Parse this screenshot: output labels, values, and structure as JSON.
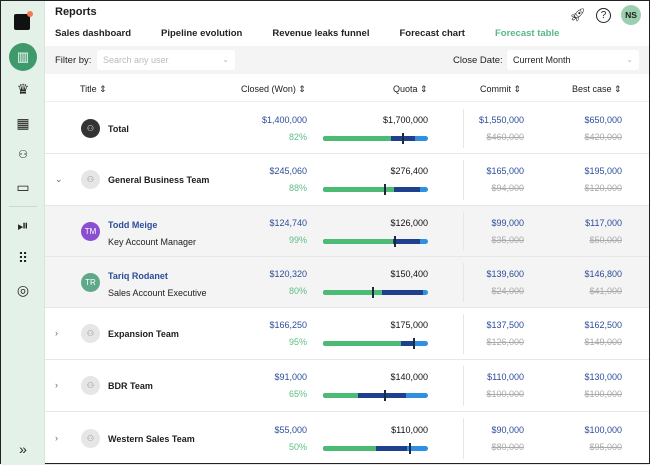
{
  "app": {
    "title": "Reports",
    "user_initials": "NS",
    "colors": {
      "accent": "#58b888",
      "closed": "#4cbb74",
      "commit": "#1f3f8f",
      "best": "#2f8fe0"
    }
  },
  "sidebar": {
    "items": [
      {
        "icon": "logo-icon"
      },
      {
        "icon": "bar-chart-icon",
        "active": true
      },
      {
        "icon": "crown-icon"
      },
      {
        "icon": "building-icon"
      },
      {
        "icon": "users-icon"
      },
      {
        "icon": "video-icon"
      },
      {
        "icon": "play-circle-icon"
      },
      {
        "icon": "apps-grid-icon"
      },
      {
        "icon": "user-circle-icon"
      },
      {
        "icon": "expand-icon"
      }
    ],
    "expand_glyph": "»"
  },
  "tabs": [
    {
      "label": "Sales dashboard"
    },
    {
      "label": "Pipeline evolution"
    },
    {
      "label": "Revenue leaks funnel"
    },
    {
      "label": "Forecast chart"
    },
    {
      "label": "Forecast table",
      "active": true
    }
  ],
  "filters": {
    "filter_label": "Filter by:",
    "search_placeholder": "Search any user",
    "close_date_label": "Close Date:",
    "close_date_value": "Current Month"
  },
  "columns": {
    "title": "Title",
    "closed": "Closed (Won)",
    "quota": "Quota",
    "commit": "Commit",
    "best": "Best case",
    "sort_glyph": "⌃"
  },
  "rows": [
    {
      "name": "Total",
      "type": "total",
      "closed": "$1,400,000",
      "pct": "82%",
      "quota": "$1,700,000",
      "commit": "$1,550,000",
      "commit_prev": "$460,000",
      "best": "$650,000",
      "best_prev": "$420,000",
      "bar": {
        "closed": 0.65,
        "commit": 0.88,
        "marker": 0.75
      }
    },
    {
      "name": "General Business Team",
      "type": "team",
      "expanded": true,
      "closed": "$245,060",
      "pct": "88%",
      "quota": "$276,400",
      "commit": "$165,000",
      "commit_prev": "$94,000",
      "best": "$195,000",
      "best_prev": "$120,000",
      "bar": {
        "closed": 0.68,
        "commit": 0.92,
        "marker": 0.58
      }
    },
    {
      "name": "Todd Meige",
      "role": "Key Account Manager",
      "type": "user",
      "initials": "TM",
      "avatar_color": "#8a4fd0",
      "closed": "$124,740",
      "pct": "99%",
      "quota": "$126,000",
      "commit": "$99,000",
      "commit_prev": "$35,000",
      "best": "$117,000",
      "best_prev": "$50,000",
      "bar": {
        "closed": 0.67,
        "commit": 0.92,
        "marker": 0.68
      }
    },
    {
      "name": "Tariq Rodanet",
      "role": "Sales Account Executive",
      "type": "user",
      "initials": "TR",
      "avatar_color": "#5fa88a",
      "closed": "$120,320",
      "pct": "80%",
      "quota": "$150,400",
      "commit": "$139,600",
      "commit_prev": "$24,000",
      "best": "$146,800",
      "best_prev": "$41,000",
      "bar": {
        "closed": 0.56,
        "commit": 0.95,
        "marker": 0.47
      }
    },
    {
      "name": "Expansion Team",
      "type": "team",
      "closed": "$166,250",
      "pct": "95%",
      "quota": "$175,000",
      "commit": "$137,500",
      "commit_prev": "$126,000",
      "best": "$162,500",
      "best_prev": "$149,000",
      "bar": {
        "closed": 0.74,
        "commit": 0.86,
        "marker": 0.86
      }
    },
    {
      "name": "BDR Team",
      "type": "team",
      "closed": "$91,000",
      "pct": "65%",
      "quota": "$140,000",
      "commit": "$110,000",
      "commit_prev": "$100,000",
      "best": "$130,000",
      "best_prev": "$100,000",
      "bar": {
        "closed": 0.33,
        "commit": 0.79,
        "marker": 0.58
      }
    },
    {
      "name": "Western Sales Team",
      "type": "team",
      "closed": "$55,000",
      "pct": "50%",
      "quota": "$110,000",
      "commit": "$90,000",
      "commit_prev": "$80,000",
      "best": "$100,000",
      "best_prev": "$95,000",
      "bar": {
        "closed": 0.5,
        "commit": 0.8,
        "marker": 0.82
      }
    }
  ]
}
